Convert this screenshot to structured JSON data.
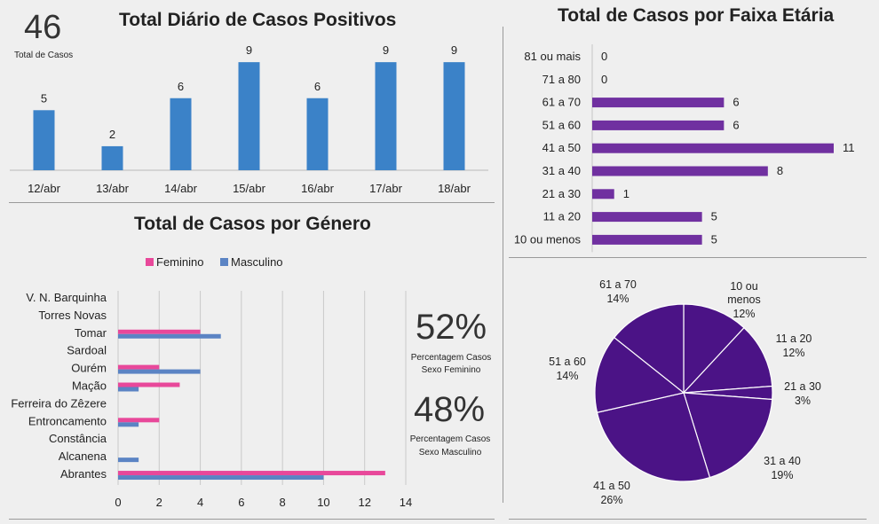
{
  "total": {
    "value": "46",
    "label": "Total de Casos"
  },
  "percent": {
    "female_value": "52%",
    "female_label_1": "Percentagem Casos",
    "female_label_2": "Sexo Feminino",
    "male_value": "48%",
    "male_label_1": "Percentagem Casos",
    "male_label_2": "Sexo Masculino"
  },
  "colors": {
    "blue": "#3b82c8",
    "purple": "#7030a0",
    "pink": "#e8489a",
    "steel": "#5b84c4",
    "pie_fill": "#4b1386"
  },
  "chart_data": [
    {
      "type": "bar",
      "title": "Total Diário de Casos Positivos",
      "categories": [
        "12/abr",
        "13/abr",
        "14/abr",
        "15/abr",
        "16/abr",
        "17/abr",
        "18/abr"
      ],
      "values": [
        5,
        2,
        6,
        9,
        6,
        9,
        9
      ],
      "ylim": [
        0,
        9.6
      ],
      "grid": false
    },
    {
      "type": "bar",
      "orientation": "horizontal",
      "title": "Total de Casos por Faixa Etária",
      "categories": [
        "81 ou mais",
        "71 a 80",
        "61 a 70",
        "51 a 60",
        "41 a 50",
        "31 a 40",
        "21 a 30",
        "11 a 20",
        "10 ou menos"
      ],
      "values": [
        0,
        0,
        6,
        6,
        11,
        8,
        1,
        5,
        5
      ],
      "xlim": [
        0,
        11
      ],
      "grid": false
    },
    {
      "type": "bar",
      "orientation": "horizontal",
      "title": "Total de Casos por Género",
      "categories": [
        "V. N. Barquinha",
        "Torres Novas",
        "Tomar",
        "Sardoal",
        "Ourém",
        "Mação",
        "Ferreira do Zêzere",
        "Entroncamento",
        "Constância",
        "Alcanena",
        "Abrantes"
      ],
      "series": [
        {
          "name": "Feminino",
          "values": [
            0,
            0,
            4,
            0,
            2,
            3,
            0,
            2,
            0,
            0,
            13
          ]
        },
        {
          "name": "Masculino",
          "values": [
            0,
            0,
            5,
            0,
            4,
            1,
            0,
            1,
            0,
            1,
            10
          ]
        }
      ],
      "xticks": [
        "0",
        "2",
        "4",
        "6",
        "8",
        "10",
        "12",
        "14"
      ],
      "xlim": [
        0,
        14
      ],
      "legend": "top",
      "grid": true
    },
    {
      "type": "pie",
      "slices": [
        {
          "label": "10 ou menos",
          "pct": "12%",
          "value": 5
        },
        {
          "label": "11 a 20",
          "pct": "12%",
          "value": 5
        },
        {
          "label": "21 a 30",
          "pct": "3%",
          "value": 1
        },
        {
          "label": "31 a 40",
          "pct": "19%",
          "value": 8
        },
        {
          "label": "41 a 50",
          "pct": "26%",
          "value": 11
        },
        {
          "label": "51 a 60",
          "pct": "14%",
          "value": 6
        },
        {
          "label": "61 a 70",
          "pct": "14%",
          "value": 6
        }
      ]
    }
  ]
}
